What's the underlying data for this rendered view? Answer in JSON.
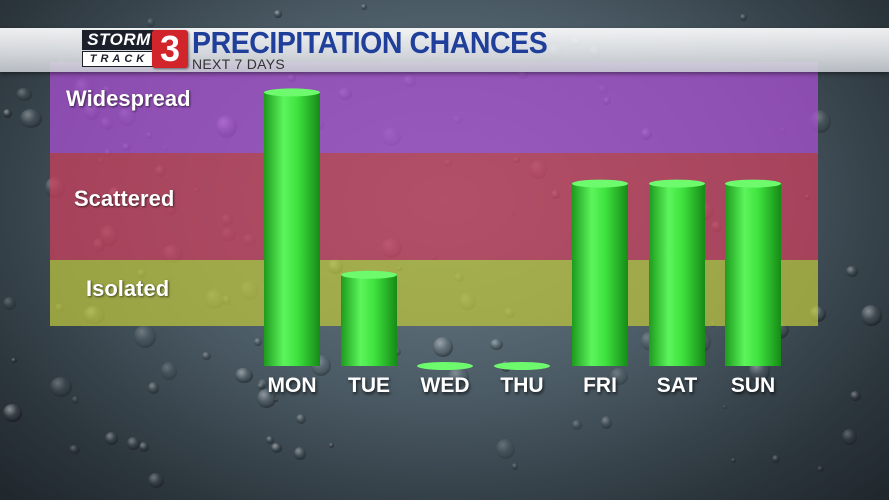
{
  "header": {
    "logo_word_top": "STORM",
    "logo_word_bottom": "TRACK",
    "logo_number": "3",
    "title": "PRECIPITATION CHANCES",
    "subtitle": "NEXT 7 DAYS"
  },
  "colors": {
    "widespread": "#a84fd0",
    "scattered": "#c9405e",
    "isolated": "#b9c23f",
    "bar": "#3ee23e"
  },
  "chart_data": {
    "type": "bar",
    "title": "PRECIPITATION CHANCES",
    "subtitle": "NEXT 7 DAYS",
    "xlabel": "",
    "ylabel": "",
    "categories": [
      "MON",
      "TUE",
      "WED",
      "THU",
      "FRI",
      "SAT",
      "SUN"
    ],
    "values": [
      90,
      30,
      0,
      0,
      60,
      60,
      60
    ],
    "ylim": [
      0,
      100
    ],
    "zones": [
      {
        "label": "Isolated",
        "from": 0,
        "to": 35
      },
      {
        "label": "Scattered",
        "from": 35,
        "to": 70
      },
      {
        "label": "Widespread",
        "from": 70,
        "to": 100
      }
    ],
    "grid": false,
    "legend": "none"
  }
}
